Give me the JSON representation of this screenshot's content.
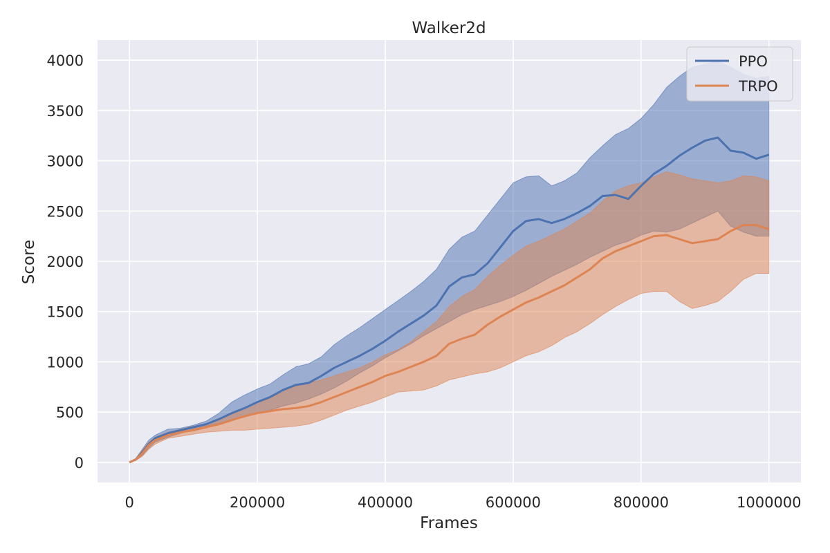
{
  "chart_data": {
    "type": "line",
    "title": "Walker2d",
    "xlabel": "Frames",
    "ylabel": "Score",
    "xlim": [
      -50000,
      1050000
    ],
    "ylim": [
      -200,
      4200
    ],
    "xticks": [
      0,
      200000,
      400000,
      600000,
      800000,
      1000000
    ],
    "yticks": [
      0,
      500,
      1000,
      1500,
      2000,
      2500,
      3000,
      3500,
      4000
    ],
    "grid": true,
    "background": "#eaeaf2",
    "legend_position": "top-right",
    "series": [
      {
        "name": "PPO",
        "color": "#4c72b0",
        "x": [
          0,
          10000,
          20000,
          30000,
          40000,
          60000,
          80000,
          100000,
          120000,
          140000,
          160000,
          180000,
          200000,
          220000,
          240000,
          260000,
          280000,
          300000,
          320000,
          340000,
          360000,
          380000,
          400000,
          420000,
          440000,
          460000,
          480000,
          500000,
          520000,
          540000,
          560000,
          580000,
          600000,
          620000,
          640000,
          660000,
          680000,
          700000,
          720000,
          740000,
          760000,
          780000,
          800000,
          820000,
          840000,
          860000,
          880000,
          900000,
          920000,
          940000,
          960000,
          980000,
          1000000
        ],
        "mean": [
          0,
          30,
          100,
          180,
          240,
          290,
          320,
          350,
          380,
          430,
          490,
          540,
          600,
          650,
          720,
          770,
          790,
          860,
          940,
          1000,
          1060,
          1130,
          1210,
          1300,
          1380,
          1460,
          1560,
          1750,
          1840,
          1870,
          1980,
          2140,
          2300,
          2400,
          2420,
          2380,
          2420,
          2480,
          2550,
          2650,
          2660,
          2620,
          2750,
          2870,
          2950,
          3050,
          3130,
          3200,
          3230,
          3100,
          3080,
          3020,
          3060
        ],
        "lower": [
          0,
          20,
          70,
          140,
          200,
          250,
          290,
          330,
          360,
          390,
          420,
          450,
          490,
          520,
          560,
          590,
          630,
          680,
          740,
          810,
          890,
          960,
          1040,
          1110,
          1180,
          1260,
          1330,
          1400,
          1470,
          1520,
          1560,
          1600,
          1650,
          1710,
          1780,
          1850,
          1910,
          1970,
          2040,
          2100,
          2160,
          2200,
          2260,
          2300,
          2290,
          2320,
          2380,
          2440,
          2500,
          2350,
          2290,
          2250,
          2250
        ],
        "upper": [
          0,
          40,
          130,
          220,
          270,
          330,
          340,
          370,
          410,
          490,
          600,
          670,
          730,
          780,
          870,
          950,
          980,
          1050,
          1170,
          1260,
          1340,
          1430,
          1520,
          1610,
          1700,
          1800,
          1920,
          2120,
          2240,
          2300,
          2460,
          2620,
          2780,
          2840,
          2850,
          2750,
          2800,
          2880,
          3030,
          3150,
          3260,
          3320,
          3420,
          3560,
          3730,
          3840,
          3930,
          3960,
          3990,
          3930,
          3860,
          3820,
          3840
        ]
      },
      {
        "name": "TRPO",
        "color": "#dd8452",
        "x": [
          0,
          10000,
          20000,
          30000,
          40000,
          60000,
          80000,
          100000,
          120000,
          140000,
          160000,
          180000,
          200000,
          220000,
          240000,
          260000,
          280000,
          300000,
          320000,
          340000,
          360000,
          380000,
          400000,
          420000,
          440000,
          460000,
          480000,
          500000,
          520000,
          540000,
          560000,
          580000,
          600000,
          620000,
          640000,
          660000,
          680000,
          700000,
          720000,
          740000,
          760000,
          780000,
          800000,
          820000,
          840000,
          860000,
          880000,
          900000,
          920000,
          940000,
          960000,
          980000,
          1000000
        ],
        "mean": [
          0,
          30,
          90,
          170,
          220,
          270,
          300,
          320,
          350,
          380,
          420,
          460,
          490,
          510,
          530,
          540,
          560,
          600,
          650,
          700,
          750,
          800,
          860,
          900,
          950,
          1000,
          1060,
          1180,
          1230,
          1270,
          1370,
          1450,
          1520,
          1590,
          1640,
          1700,
          1760,
          1840,
          1920,
          2030,
          2100,
          2150,
          2200,
          2250,
          2260,
          2220,
          2180,
          2200,
          2220,
          2300,
          2360,
          2360,
          2320
        ],
        "lower": [
          0,
          20,
          60,
          130,
          180,
          240,
          260,
          280,
          300,
          310,
          320,
          320,
          330,
          340,
          350,
          360,
          380,
          420,
          470,
          520,
          560,
          600,
          650,
          700,
          710,
          720,
          760,
          820,
          850,
          880,
          900,
          940,
          1000,
          1060,
          1100,
          1160,
          1240,
          1300,
          1380,
          1470,
          1550,
          1620,
          1680,
          1700,
          1700,
          1600,
          1530,
          1560,
          1600,
          1700,
          1820,
          1880,
          1880
        ],
        "upper": [
          0,
          40,
          120,
          200,
          250,
          300,
          330,
          360,
          380,
          430,
          480,
          520,
          580,
          640,
          700,
          760,
          790,
          820,
          860,
          900,
          940,
          1000,
          1070,
          1120,
          1200,
          1300,
          1400,
          1550,
          1650,
          1720,
          1850,
          1960,
          2060,
          2150,
          2200,
          2260,
          2320,
          2400,
          2480,
          2600,
          2700,
          2750,
          2780,
          2840,
          2890,
          2860,
          2820,
          2800,
          2780,
          2800,
          2850,
          2840,
          2800
        ]
      }
    ]
  }
}
